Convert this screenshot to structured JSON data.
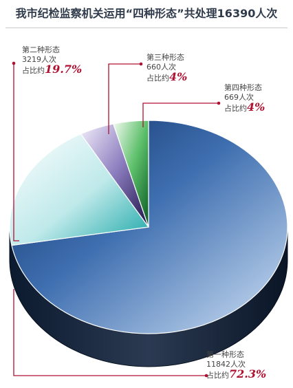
{
  "title": "我市纪检监察机关运用“四种形态”共处理16390人次",
  "chart_data": {
    "type": "pie",
    "title": "我市纪检监察机关运用“四种形态”共处理16390人次",
    "total": 16390,
    "share_prefix": "占比约",
    "slices": [
      {
        "name": "第一种形态",
        "count_text": "11842人次",
        "value": 11842,
        "share_text": "72.3%",
        "share": 72.3,
        "color": "#2e5c9a"
      },
      {
        "name": "第二种形态",
        "count_text": "3219人次",
        "value": 3219,
        "share_text": "19.7%",
        "share": 19.7,
        "color": "#3ab7b7"
      },
      {
        "name": "第三种形态",
        "count_text": "660人次",
        "value": 660,
        "share_text": "4%",
        "share": 4,
        "color": "#5a4a8a"
      },
      {
        "name": "第四种形态",
        "count_text": "669人次",
        "value": 669,
        "share_text": "4%",
        "share": 4,
        "color": "#1f8a3d"
      }
    ],
    "leader_color": "#b01030"
  }
}
